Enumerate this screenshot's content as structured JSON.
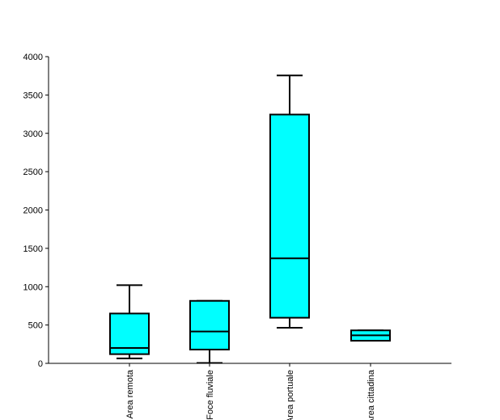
{
  "chart_data": {
    "type": "boxplot",
    "title": "",
    "xlabel": "",
    "ylabel": "",
    "ylim": [
      0,
      4000
    ],
    "yticks": [
      0,
      500,
      1000,
      1500,
      2000,
      2500,
      3000,
      3500,
      4000
    ],
    "categories": [
      "Area remota",
      "Foce fluviale",
      "Area portuale",
      "Area cittadina"
    ],
    "boxes": [
      {
        "category": "Area remota",
        "min": 65,
        "q1": 120,
        "median": 200,
        "q3": 650,
        "max": 1020
      },
      {
        "category": "Foce fluviale",
        "min": 5,
        "q1": 180,
        "median": 415,
        "q3": 815,
        "max": 815
      },
      {
        "category": "Area portuale",
        "min": 465,
        "q1": 595,
        "median": 1370,
        "q3": 3245,
        "max": 3755
      },
      {
        "category": "Area cittadina",
        "min": 295,
        "q1": 295,
        "median": 365,
        "q3": 430,
        "max": 430
      }
    ],
    "box_fill_color": "#00ffff",
    "line_color": "#000000",
    "grid": false,
    "legend": "none"
  }
}
